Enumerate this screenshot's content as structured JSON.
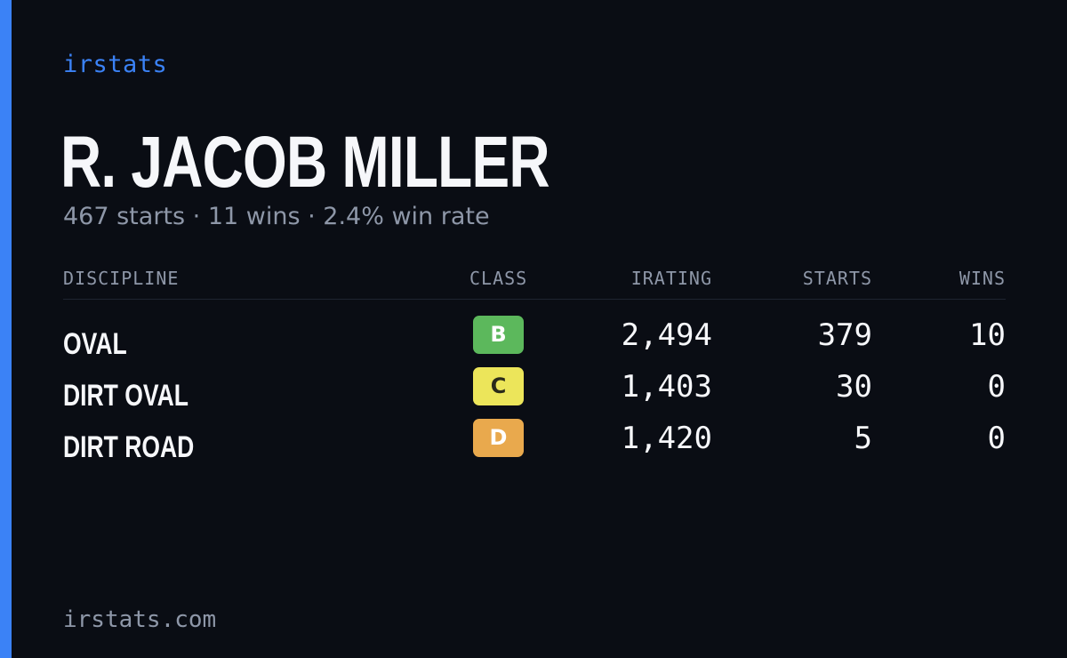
{
  "brand": "irstats",
  "driver": {
    "name": "R. JACOB MILLER",
    "summary": "467 starts · 11 wins · 2.4% win rate"
  },
  "table": {
    "headers": {
      "discipline": "DISCIPLINE",
      "class": "CLASS",
      "irating": "IRATING",
      "starts": "STARTS",
      "wins": "WINS"
    },
    "rows": [
      {
        "discipline": "OVAL",
        "class": "B",
        "class_color": "#5cb85c",
        "irating": "2,494",
        "starts": "379",
        "wins": "10"
      },
      {
        "discipline": "DIRT OVAL",
        "class": "C",
        "class_color": "#ece55a",
        "irating": "1,403",
        "starts": "30",
        "wins": "0"
      },
      {
        "discipline": "DIRT ROAD",
        "class": "D",
        "class_color": "#e9a94d",
        "irating": "1,420",
        "starts": "5",
        "wins": "0"
      }
    ]
  },
  "footer": "irstats.com",
  "colors": {
    "accent": "#3b82f6",
    "background": "#0a0d14"
  }
}
